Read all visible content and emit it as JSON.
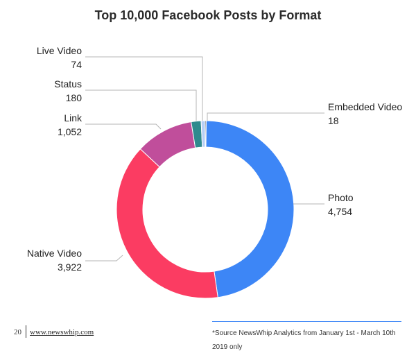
{
  "chart_data": {
    "type": "pie",
    "title": "Top 10,000 Facebook Posts by Format",
    "donut": true,
    "legend": "callout labels beside slices",
    "slices": [
      {
        "name": "Embedded Video",
        "label": "Embedded Video",
        "value": 18,
        "value_label": "18",
        "color": "#111111"
      },
      {
        "name": "Photo",
        "label": "Photo",
        "value": 4754,
        "value_label": "4,754",
        "color": "#3d86f6"
      },
      {
        "name": "Native Video",
        "label": "Native Video",
        "value": 3922,
        "value_label": "3,922",
        "color": "#fb3c62"
      },
      {
        "name": "Link",
        "label": "Link",
        "value": 1052,
        "value_label": "1,052",
        "color": "#c04e9b"
      },
      {
        "name": "Status",
        "label": "Status",
        "value": 180,
        "value_label": "180",
        "color": "#2f8a8e"
      },
      {
        "name": "Live Video",
        "label": "Live Video",
        "value": 74,
        "value_label": "74",
        "color": "#b7cff5"
      }
    ]
  },
  "footer": {
    "page_number": "20",
    "link_text": "www.newswhip.com",
    "source_note": "*Source NewsWhip Analytics from January 1st - March 10th 2019 only"
  }
}
